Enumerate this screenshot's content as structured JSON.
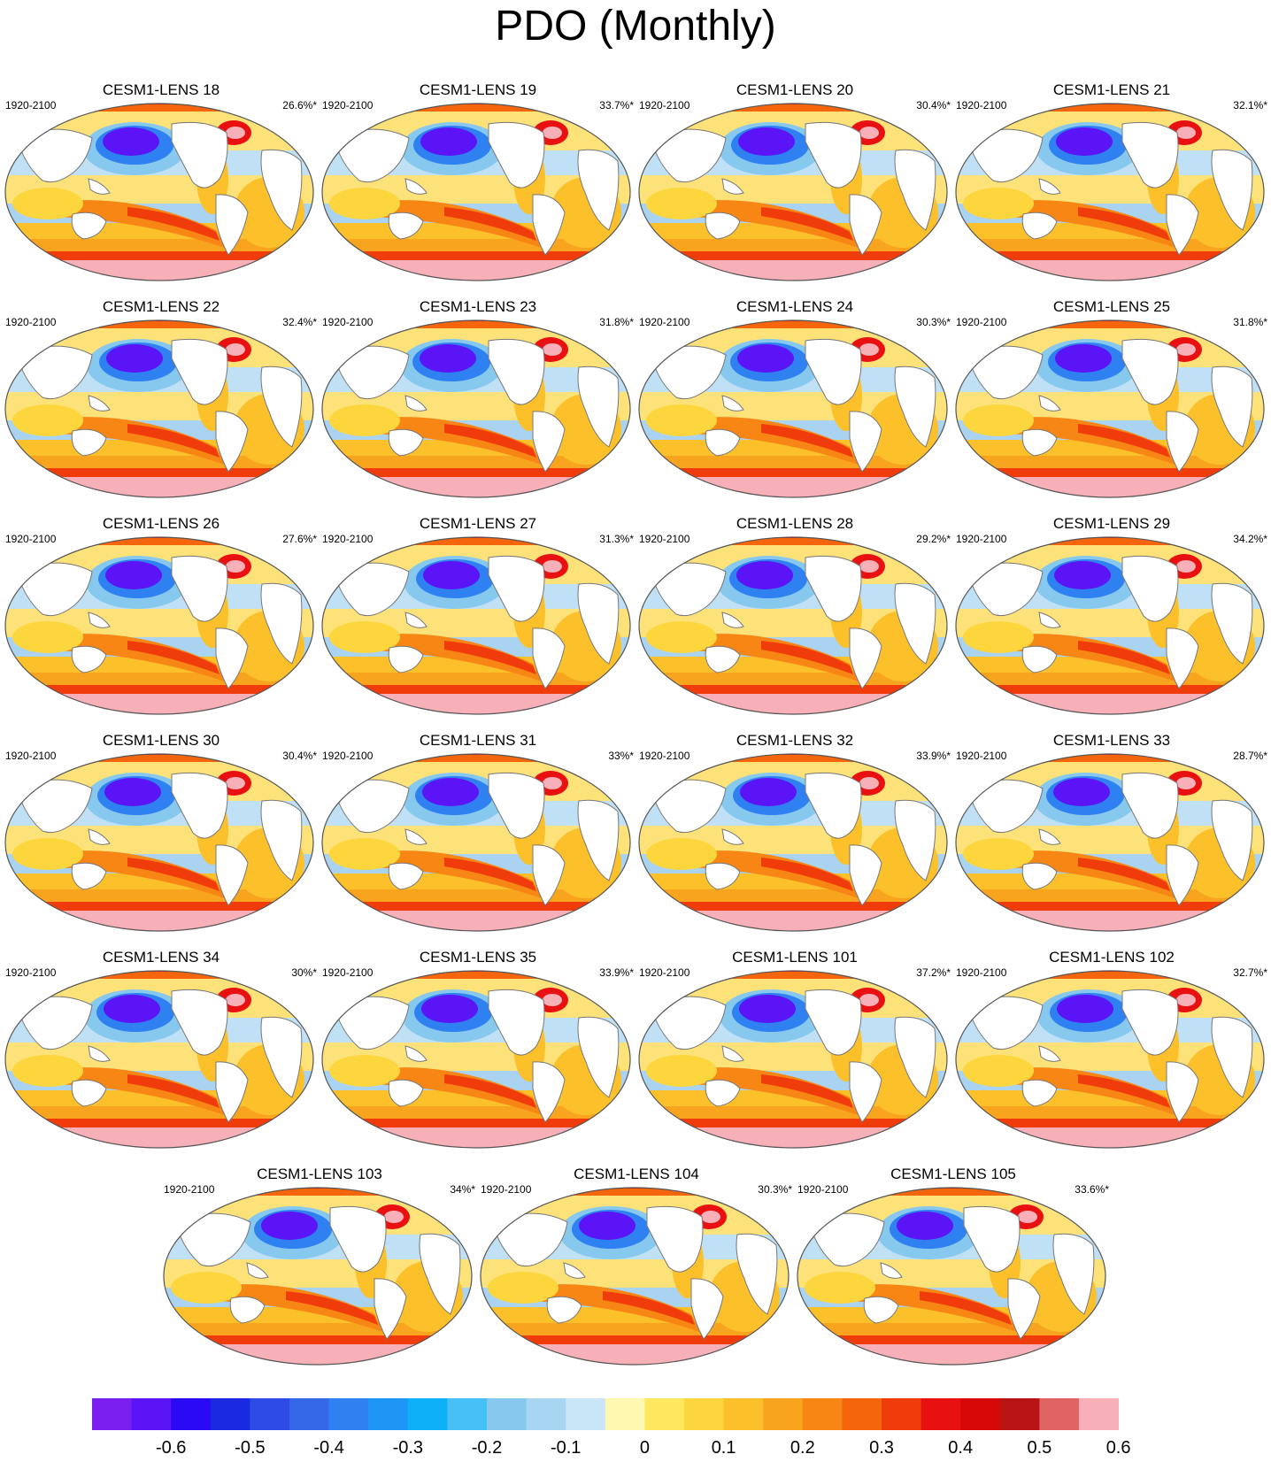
{
  "title": "PDO (Monthly)",
  "panels": [
    {
      "name": "CESM1-LENS 18",
      "period": "1920-2100",
      "pct": "26.6%*"
    },
    {
      "name": "CESM1-LENS 19",
      "period": "1920-2100",
      "pct": "33.7%*"
    },
    {
      "name": "CESM1-LENS 20",
      "period": "1920-2100",
      "pct": "30.4%*"
    },
    {
      "name": "CESM1-LENS 21",
      "period": "1920-2100",
      "pct": "32.1%*"
    },
    {
      "name": "CESM1-LENS 22",
      "period": "1920-2100",
      "pct": "32.4%*"
    },
    {
      "name": "CESM1-LENS 23",
      "period": "1920-2100",
      "pct": "31.8%*"
    },
    {
      "name": "CESM1-LENS 24",
      "period": "1920-2100",
      "pct": "30.3%*"
    },
    {
      "name": "CESM1-LENS 25",
      "period": "1920-2100",
      "pct": "31.8%*"
    },
    {
      "name": "CESM1-LENS 26",
      "period": "1920-2100",
      "pct": "27.6%*"
    },
    {
      "name": "CESM1-LENS 27",
      "period": "1920-2100",
      "pct": "31.3%*"
    },
    {
      "name": "CESM1-LENS 28",
      "period": "1920-2100",
      "pct": "29.2%*"
    },
    {
      "name": "CESM1-LENS 29",
      "period": "1920-2100",
      "pct": "34.2%*"
    },
    {
      "name": "CESM1-LENS 30",
      "period": "1920-2100",
      "pct": "30.4%*"
    },
    {
      "name": "CESM1-LENS 31",
      "period": "1920-2100",
      "pct": "33%*"
    },
    {
      "name": "CESM1-LENS 32",
      "period": "1920-2100",
      "pct": "33.9%*"
    },
    {
      "name": "CESM1-LENS 33",
      "period": "1920-2100",
      "pct": "28.7%*"
    },
    {
      "name": "CESM1-LENS 34",
      "period": "1920-2100",
      "pct": "30%*"
    },
    {
      "name": "CESM1-LENS 35",
      "period": "1920-2100",
      "pct": "33.9%*"
    },
    {
      "name": "CESM1-LENS 101",
      "period": "1920-2100",
      "pct": "37.2%*"
    },
    {
      "name": "CESM1-LENS 102",
      "period": "1920-2100",
      "pct": "32.7%*"
    },
    {
      "name": "CESM1-LENS 103",
      "period": "1920-2100",
      "pct": "34%*"
    },
    {
      "name": "CESM1-LENS 104",
      "period": "1920-2100",
      "pct": "30.3%*"
    },
    {
      "name": "CESM1-LENS 105",
      "period": "1920-2100",
      "pct": "33.6%*"
    }
  ],
  "colorbar": {
    "colors": [
      "#7a1ff0",
      "#5a14f5",
      "#2a0af5",
      "#1a2ae0",
      "#2f4be6",
      "#3568e8",
      "#2f80f0",
      "#1e96f5",
      "#0eb0f8",
      "#46c0f5",
      "#86c8ee",
      "#a8d6f2",
      "#c8e6f7",
      "#fff8b0",
      "#fde860",
      "#fcd63c",
      "#fbc02a",
      "#f9a41e",
      "#f78614",
      "#f5660c",
      "#f03c0a",
      "#e81010",
      "#d60808",
      "#b81414",
      "#e06464",
      "#f8b0b8"
    ],
    "tick_labels": [
      "-0.6",
      "-0.5",
      "-0.4",
      "-0.3",
      "-0.2",
      "-0.1",
      "0",
      "0.1",
      "0.2",
      "0.3",
      "0.4",
      "0.5",
      "0.6"
    ]
  }
}
